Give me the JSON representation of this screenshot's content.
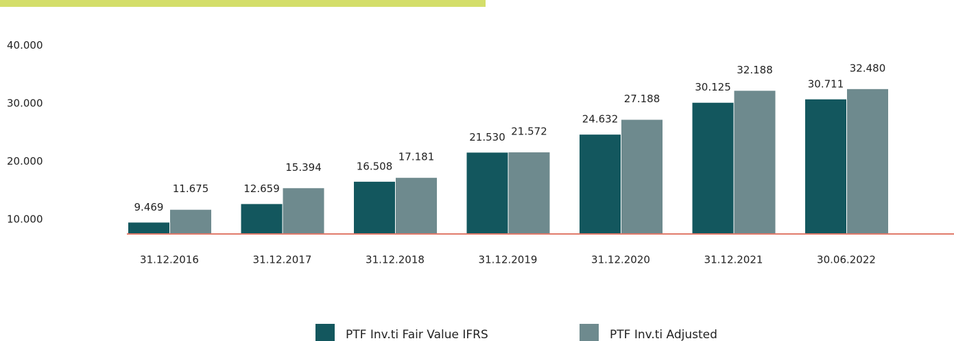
{
  "chart_data": {
    "type": "bar",
    "categories": [
      "31.12.2016",
      "31.12.2017",
      "31.12.2018",
      "31.12.2019",
      "31.12.2020",
      "31.12.2021",
      "30.06.2022"
    ],
    "series": [
      {
        "name": "PTF Inv.ti Fair Value IFRS",
        "color": "#13575e",
        "values": [
          9469,
          12659,
          16508,
          21530,
          24632,
          30125,
          30711
        ],
        "value_labels": [
          "9.469",
          "12.659",
          "16.508",
          "21.530",
          "24.632",
          "30.125",
          "30.711"
        ]
      },
      {
        "name": "PTF Inv.ti Adjusted",
        "color": "#6e8a8e",
        "values": [
          11675,
          15394,
          17181,
          21572,
          27188,
          32188,
          32480
        ],
        "value_labels": [
          "11.675",
          "15.394",
          "17.181",
          "21.572",
          "27.188",
          "32.188",
          "32.480"
        ]
      }
    ],
    "ylim": [
      7500,
      45000
    ],
    "yticks": [
      {
        "value": 10000,
        "label": "10.000"
      },
      {
        "value": 20000,
        "label": "20.000"
      },
      {
        "value": 30000,
        "label": "30.000"
      },
      {
        "value": 40000,
        "label": "40.000"
      }
    ],
    "baseline_color": "#e07a6a"
  }
}
